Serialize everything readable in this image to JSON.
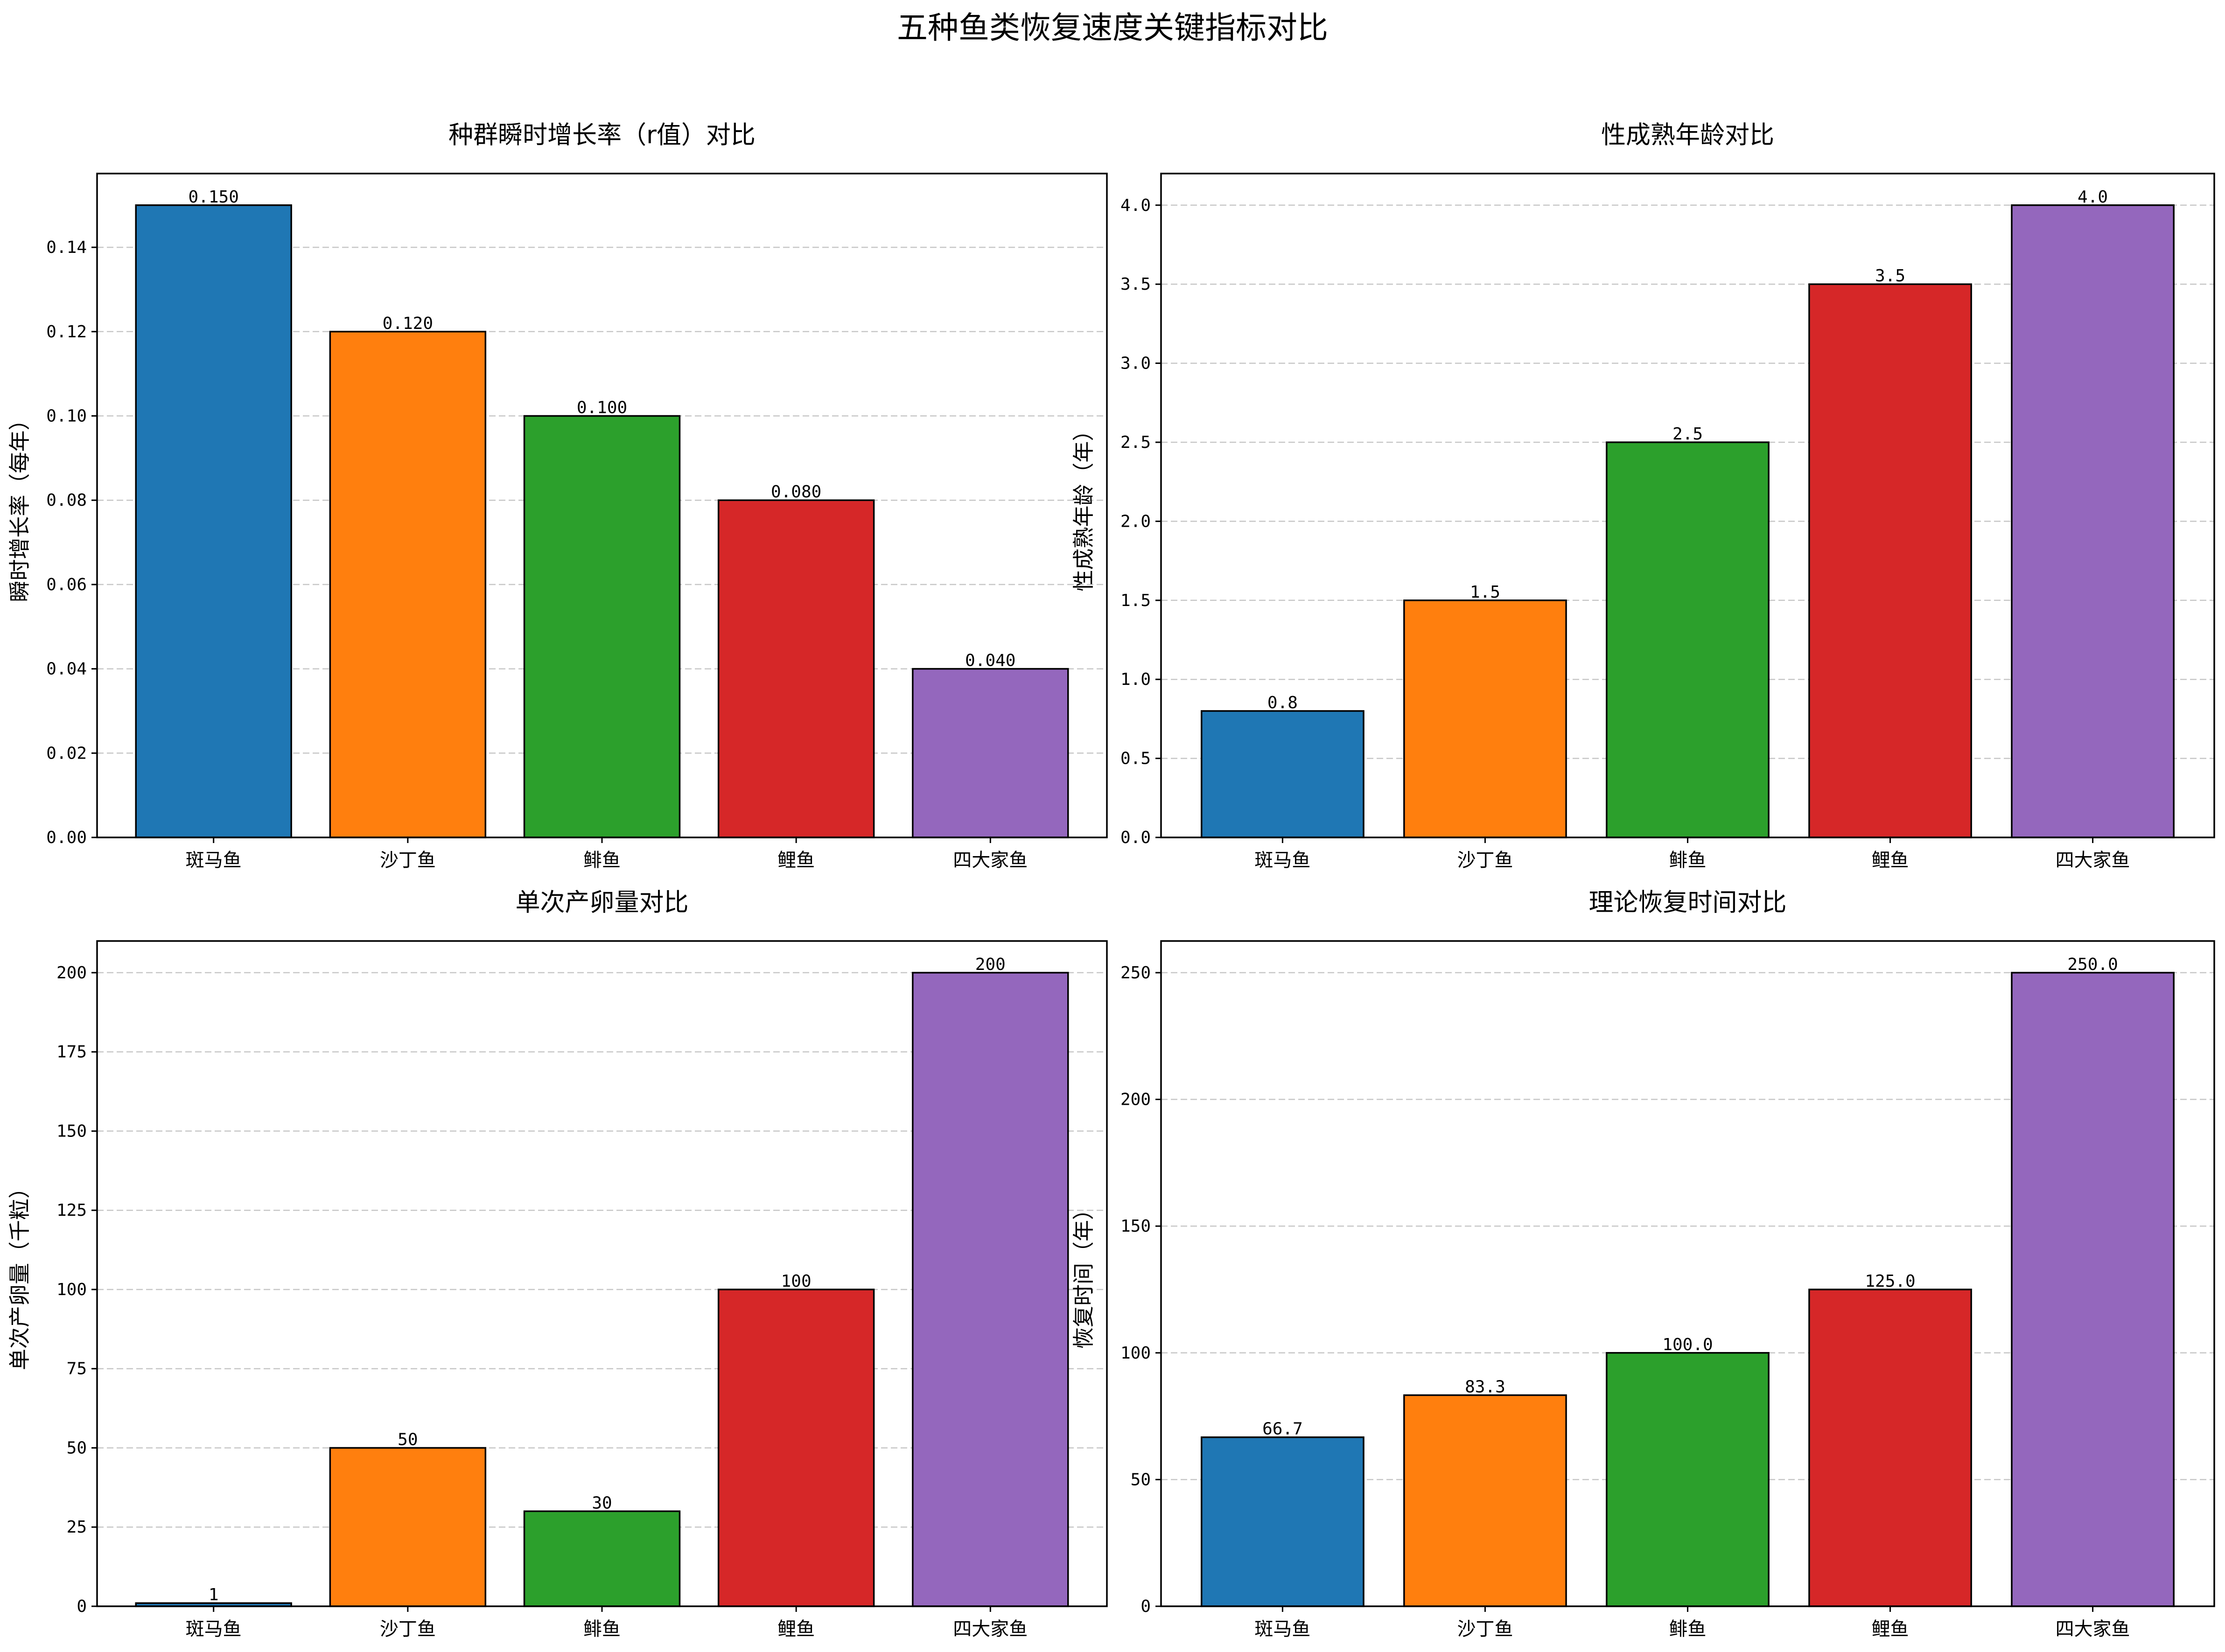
{
  "figure_title": "五种鱼类恢复速度关键指标对比",
  "colors": [
    "#1f77b4",
    "#ff7f0e",
    "#2ca02c",
    "#d62728",
    "#9467bd"
  ],
  "chart_data": [
    {
      "type": "bar",
      "title": "种群瞬时增长率（r值）对比",
      "xlabel": "",
      "ylabel": "瞬时增长率（每年）",
      "categories": [
        "斑马鱼",
        "沙丁鱼",
        "鲱鱼",
        "鲤鱼",
        "四大家鱼"
      ],
      "values": [
        0.15,
        0.12,
        0.1,
        0.08,
        0.04
      ],
      "value_labels": [
        "0.150",
        "0.120",
        "0.100",
        "0.080",
        "0.040"
      ],
      "ylim": [
        0,
        0.1575
      ],
      "yticks": [
        0.0,
        0.02,
        0.04,
        0.06,
        0.08,
        0.1,
        0.12,
        0.14
      ],
      "ytick_labels": [
        "0.00",
        "0.02",
        "0.04",
        "0.06",
        "0.08",
        "0.10",
        "0.12",
        "0.14"
      ],
      "grid": "y-dashed"
    },
    {
      "type": "bar",
      "title": "性成熟年龄对比",
      "xlabel": "",
      "ylabel": "性成熟年龄（年）",
      "categories": [
        "斑马鱼",
        "沙丁鱼",
        "鲱鱼",
        "鲤鱼",
        "四大家鱼"
      ],
      "values": [
        0.8,
        1.5,
        2.5,
        3.5,
        4.0
      ],
      "value_labels": [
        "0.8",
        "1.5",
        "2.5",
        "3.5",
        "4.0"
      ],
      "ylim": [
        0,
        4.2
      ],
      "yticks": [
        0,
        0.5,
        1.0,
        1.5,
        2.0,
        2.5,
        3.0,
        3.5,
        4.0
      ],
      "ytick_labels": [
        "0.0",
        "0.5",
        "1.0",
        "1.5",
        "2.0",
        "2.5",
        "3.0",
        "3.5",
        "4.0"
      ],
      "grid": "y-dashed"
    },
    {
      "type": "bar",
      "title": "单次产卵量对比",
      "xlabel": "",
      "ylabel": "单次产卵量（千粒）",
      "categories": [
        "斑马鱼",
        "沙丁鱼",
        "鲱鱼",
        "鲤鱼",
        "四大家鱼"
      ],
      "values": [
        1,
        50,
        30,
        100,
        200
      ],
      "value_labels": [
        "1",
        "50",
        "30",
        "100",
        "200"
      ],
      "ylim": [
        0,
        210
      ],
      "yticks": [
        0,
        25,
        50,
        75,
        100,
        125,
        150,
        175,
        200
      ],
      "ytick_labels": [
        "0",
        "25",
        "50",
        "75",
        "100",
        "125",
        "150",
        "175",
        "200"
      ],
      "grid": "y-dashed"
    },
    {
      "type": "bar",
      "title": "理论恢复时间对比",
      "xlabel": "",
      "ylabel": "恢复时间（年）",
      "categories": [
        "斑马鱼",
        "沙丁鱼",
        "鲱鱼",
        "鲤鱼",
        "四大家鱼"
      ],
      "values": [
        66.7,
        83.3,
        100.0,
        125.0,
        250.0
      ],
      "value_labels": [
        "66.7",
        "83.3",
        "100.0",
        "125.0",
        "250.0"
      ],
      "ylim": [
        0,
        262.5
      ],
      "yticks": [
        0,
        50,
        100,
        150,
        200,
        250
      ],
      "ytick_labels": [
        "0",
        "50",
        "100",
        "150",
        "200",
        "250"
      ],
      "grid": "y-dashed"
    }
  ]
}
